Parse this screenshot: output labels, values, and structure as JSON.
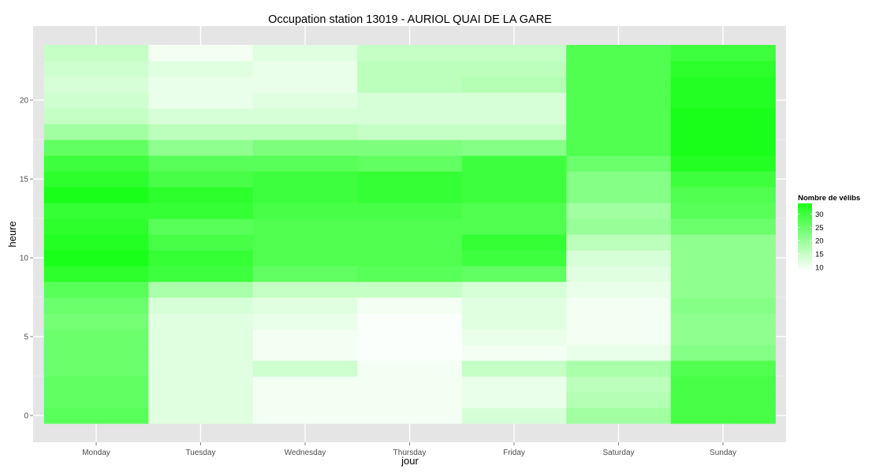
{
  "chart_data": {
    "type": "heatmap",
    "title": "Occupation station 13019 - AURIOL QUAI DE LA GARE",
    "xlabel": "jour",
    "ylabel": "heure",
    "x": [
      "Monday",
      "Tuesday",
      "Wednesday",
      "Thursday",
      "Friday",
      "Saturday",
      "Sunday"
    ],
    "y": [
      0,
      1,
      2,
      3,
      4,
      5,
      6,
      7,
      8,
      9,
      10,
      11,
      12,
      13,
      14,
      15,
      16,
      17,
      18,
      19,
      20,
      21,
      22,
      23
    ],
    "y_ticks": [
      0,
      5,
      10,
      15,
      20
    ],
    "values": [
      [
        27,
        12,
        10,
        10,
        13,
        19,
        29
      ],
      [
        26,
        12,
        10,
        10,
        11,
        17,
        29
      ],
      [
        26,
        12,
        10,
        10,
        11,
        16,
        29
      ],
      [
        25,
        12,
        14,
        10,
        15,
        18,
        28
      ],
      [
        25,
        12,
        10,
        9,
        10,
        11,
        22
      ],
      [
        25,
        12,
        10,
        9,
        11,
        10,
        21
      ],
      [
        24,
        12,
        11,
        9,
        12,
        10,
        21
      ],
      [
        25,
        13,
        12,
        10,
        12,
        10,
        22
      ],
      [
        27,
        18,
        15,
        15,
        13,
        11,
        21
      ],
      [
        32,
        30,
        26,
        27,
        26,
        12,
        21
      ],
      [
        34,
        31,
        28,
        28,
        30,
        13,
        21
      ],
      [
        33,
        29,
        28,
        28,
        31,
        16,
        21
      ],
      [
        32,
        27,
        28,
        28,
        28,
        20,
        25
      ],
      [
        31,
        31,
        29,
        29,
        28,
        19,
        27
      ],
      [
        34,
        32,
        30,
        31,
        30,
        22,
        28
      ],
      [
        32,
        29,
        30,
        31,
        30,
        22,
        30
      ],
      [
        30,
        27,
        27,
        26,
        30,
        25,
        33
      ],
      [
        26,
        21,
        23,
        23,
        22,
        28,
        34
      ],
      [
        19,
        16,
        16,
        15,
        15,
        28,
        34
      ],
      [
        15,
        13,
        13,
        13,
        13,
        28,
        34
      ],
      [
        14,
        11,
        12,
        13,
        13,
        28,
        33
      ],
      [
        13,
        11,
        11,
        16,
        17,
        28,
        33
      ],
      [
        14,
        12,
        11,
        16,
        16,
        28,
        32
      ],
      [
        15,
        10,
        12,
        15,
        15,
        28,
        30
      ]
    ],
    "color_scale": {
      "low": "#ffffff",
      "high": "#1aff1a",
      "min": 8.5,
      "max": 34
    },
    "legend": {
      "title": "Nombre de vélibs",
      "breaks": [
        30,
        25,
        20,
        15,
        10
      ],
      "position": "right"
    },
    "grid": true
  },
  "colors": {
    "panel_background": "#e5e5e5",
    "grid_major": "#ffffff",
    "grid_minor": "#f2f2f2"
  }
}
